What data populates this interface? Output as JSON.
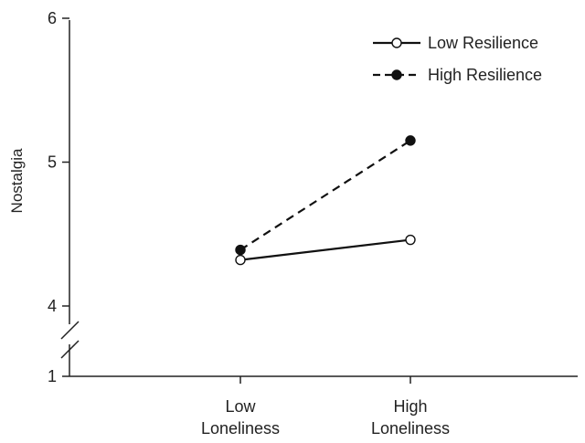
{
  "chart_data": {
    "type": "line",
    "title": "",
    "xlabel": "",
    "ylabel": "Nostalgia",
    "categories": [
      [
        "Low",
        "Loneliness"
      ],
      [
        "High",
        "Loneliness"
      ]
    ],
    "y_ticks": [
      1,
      4,
      5,
      6
    ],
    "y_axis_break": [
      1,
      4
    ],
    "ylim": [
      1,
      6
    ],
    "grid": false,
    "legend_position": "top-right",
    "series": [
      {
        "name": "Low Resilience",
        "values": [
          4.32,
          4.46
        ],
        "line_style": "solid",
        "marker": "open-circle",
        "color": "#111111"
      },
      {
        "name": "High Resilience",
        "values": [
          4.39,
          5.15
        ],
        "line_style": "dashed",
        "marker": "filled-circle",
        "color": "#111111"
      }
    ]
  }
}
